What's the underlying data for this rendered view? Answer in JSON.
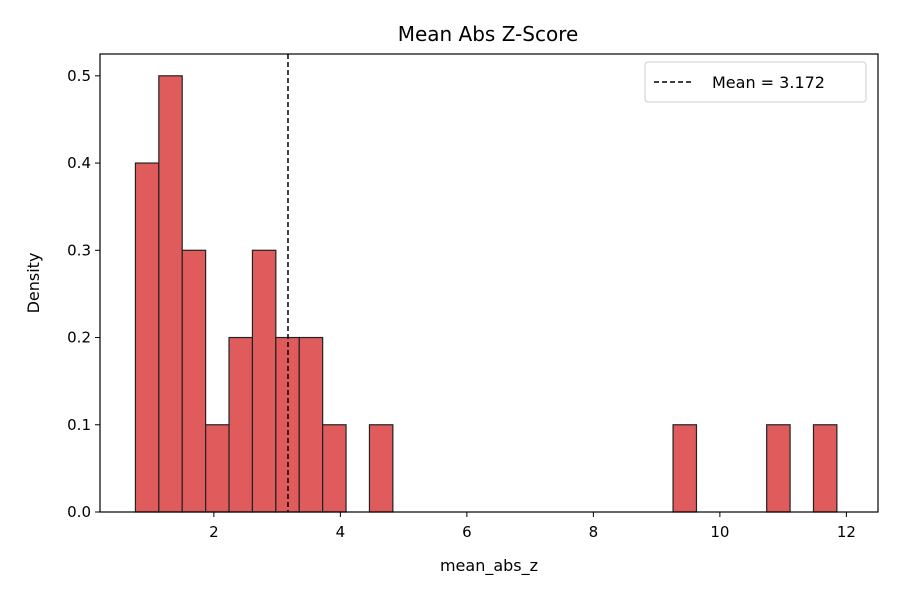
{
  "chart_data": {
    "type": "bar",
    "title": "Mean Abs Z-Score",
    "xlabel": "mean_abs_z",
    "ylabel": "Density",
    "xlim": [
      0.2,
      12.5
    ],
    "ylim": [
      0,
      0.525
    ],
    "xticks": [
      2,
      4,
      6,
      8,
      10,
      12
    ],
    "yticks": [
      0.0,
      0.1,
      0.2,
      0.3,
      0.4,
      0.5
    ],
    "ytick_labels": [
      "0.0",
      "0.1",
      "0.2",
      "0.3",
      "0.4",
      "0.5"
    ],
    "bins": [
      {
        "x0": 0.76,
        "x1": 1.13,
        "density": 0.4
      },
      {
        "x0": 1.13,
        "x1": 1.5,
        "density": 0.5
      },
      {
        "x0": 1.5,
        "x1": 1.87,
        "density": 0.3
      },
      {
        "x0": 1.87,
        "x1": 2.24,
        "density": 0.1
      },
      {
        "x0": 2.24,
        "x1": 2.61,
        "density": 0.2
      },
      {
        "x0": 2.61,
        "x1": 2.98,
        "density": 0.3
      },
      {
        "x0": 2.98,
        "x1": 3.35,
        "density": 0.2
      },
      {
        "x0": 3.35,
        "x1": 3.72,
        "density": 0.2
      },
      {
        "x0": 3.72,
        "x1": 4.09,
        "density": 0.1
      },
      {
        "x0": 4.46,
        "x1": 4.83,
        "density": 0.1
      },
      {
        "x0": 9.26,
        "x1": 9.63,
        "density": 0.1
      },
      {
        "x0": 10.74,
        "x1": 11.11,
        "density": 0.1
      },
      {
        "x0": 11.48,
        "x1": 11.85,
        "density": 0.1
      }
    ],
    "mean_line": {
      "value": 3.172,
      "label": "Mean = 3.172",
      "style": "dashed",
      "color": "#000000"
    },
    "bar_color": "#e05c5c",
    "edge_color": "#222222",
    "legend_position": "top-right",
    "grid": false
  }
}
